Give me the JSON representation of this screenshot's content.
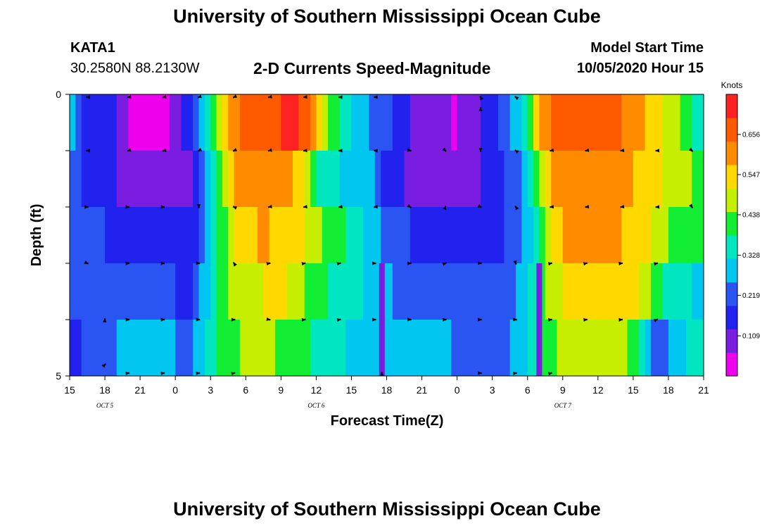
{
  "header": {
    "title": "University of Southern Mississippi Ocean Cube",
    "station": "KATA1",
    "coords": "30.2580N 88.2130W",
    "chart_title": "2-D Currents Speed-Magnitude",
    "model_label": "Model Start Time",
    "model_time": "10/05/2020 Hour 15"
  },
  "footer": {
    "title": "University of Southern Mississippi Ocean Cube"
  },
  "chart_data": {
    "type": "heatmap",
    "title": "2-D Currents Speed-Magnitude",
    "xlabel": "Forecast Time(Z)",
    "ylabel": "Depth (ft)",
    "x_ticks": [
      "15",
      "18",
      "21",
      "0",
      "3",
      "6",
      "9",
      "12",
      "15",
      "18",
      "21",
      "0",
      "3",
      "6",
      "9",
      "12",
      "15",
      "18",
      "21"
    ],
    "date_labels": [
      {
        "label": "OCT 5",
        "tick_index": 1
      },
      {
        "label": "OCT 6",
        "tick_index": 7
      },
      {
        "label": "OCT 7",
        "tick_index": 14
      }
    ],
    "y_ticks": [
      "0",
      "5"
    ],
    "ylim": [
      0,
      5
    ],
    "xlim_hours": [
      0,
      54
    ],
    "colorbar": {
      "unit": "Knots",
      "labels": [
        "0.656",
        "0.547",
        "0.438",
        "0.328",
        "0.219",
        "0.109"
      ],
      "values": [
        0.656,
        0.547,
        0.438,
        0.328,
        0.219,
        0.109
      ],
      "range": [
        0.0,
        0.765
      ],
      "colors": [
        "#ee00ee",
        "#7a1de0",
        "#2222ee",
        "#2b55f3",
        "#00c6f0",
        "#00e6c0",
        "#11ee33",
        "#c6ef00",
        "#ffd800",
        "#ff8c00",
        "#ff5a00",
        "#ff2222"
      ]
    },
    "depth_layers": 5,
    "speed_profiles": [
      {
        "layer": 1,
        "points": [
          [
            0,
            0.3
          ],
          [
            1,
            0.19
          ],
          [
            3,
            0.16
          ],
          [
            4,
            0.12
          ],
          [
            5,
            0.06
          ],
          [
            7,
            0.03
          ],
          [
            8,
            0.05
          ],
          [
            9,
            0.09
          ],
          [
            10,
            0.15
          ],
          [
            11,
            0.22
          ],
          [
            11.5,
            0.3
          ],
          [
            12.5,
            0.48
          ],
          [
            13.5,
            0.56
          ],
          [
            15,
            0.66
          ],
          [
            19.5,
            0.72
          ],
          [
            21,
            0.6
          ],
          [
            22,
            0.46
          ],
          [
            23,
            0.38
          ],
          [
            24,
            0.3
          ],
          [
            27,
            0.22
          ],
          [
            29,
            0.12
          ],
          [
            31,
            0.08
          ],
          [
            33,
            0.06
          ],
          [
            34,
            0.09
          ],
          [
            36,
            0.16
          ],
          [
            37,
            0.22
          ],
          [
            39,
            0.36
          ],
          [
            40,
            0.56
          ],
          [
            41,
            0.66
          ],
          [
            46,
            0.68
          ],
          [
            48,
            0.6
          ],
          [
            52,
            0.46
          ],
          [
            53,
            0.38
          ],
          [
            54,
            0.36
          ]
        ]
      },
      {
        "layer": 2,
        "points": [
          [
            0,
            0.26
          ],
          [
            1,
            0.19
          ],
          [
            3,
            0.16
          ],
          [
            5,
            0.1
          ],
          [
            8,
            0.09
          ],
          [
            10,
            0.09
          ],
          [
            11,
            0.16
          ],
          [
            12,
            0.32
          ],
          [
            13,
            0.48
          ],
          [
            14,
            0.58
          ],
          [
            18,
            0.62
          ],
          [
            20,
            0.5
          ],
          [
            21,
            0.38
          ],
          [
            23,
            0.32
          ],
          [
            26,
            0.26
          ],
          [
            27,
            0.16
          ],
          [
            29,
            0.11
          ],
          [
            33,
            0.09
          ],
          [
            35,
            0.12
          ],
          [
            37,
            0.18
          ],
          [
            39,
            0.28
          ],
          [
            40,
            0.44
          ],
          [
            41,
            0.58
          ],
          [
            44,
            0.62
          ],
          [
            48,
            0.58
          ],
          [
            50,
            0.52
          ],
          [
            52,
            0.48
          ],
          [
            54,
            0.42
          ]
        ]
      },
      {
        "layer": 3,
        "points": [
          [
            0,
            0.22
          ],
          [
            3,
            0.19
          ],
          [
            5,
            0.16
          ],
          [
            8,
            0.16
          ],
          [
            10,
            0.14
          ],
          [
            11,
            0.2
          ],
          [
            12,
            0.3
          ],
          [
            13,
            0.42
          ],
          [
            14,
            0.52
          ],
          [
            16,
            0.58
          ],
          [
            19,
            0.56
          ],
          [
            21,
            0.46
          ],
          [
            23,
            0.4
          ],
          [
            26,
            0.28
          ],
          [
            28,
            0.2
          ],
          [
            30,
            0.18
          ],
          [
            34,
            0.16
          ],
          [
            36,
            0.16
          ],
          [
            38,
            0.22
          ],
          [
            40,
            0.36
          ],
          [
            41,
            0.52
          ],
          [
            42,
            0.58
          ],
          [
            47,
            0.58
          ],
          [
            49,
            0.52
          ],
          [
            51,
            0.44
          ],
          [
            53,
            0.42
          ],
          [
            54,
            0.44
          ]
        ]
      },
      {
        "layer": 4,
        "points": [
          [
            0,
            0.21
          ],
          [
            3,
            0.2
          ],
          [
            6,
            0.21
          ],
          [
            9,
            0.19
          ],
          [
            10,
            0.16
          ],
          [
            11,
            0.24
          ],
          [
            12,
            0.34
          ],
          [
            13,
            0.42
          ],
          [
            15,
            0.5
          ],
          [
            18,
            0.52
          ],
          [
            20,
            0.46
          ],
          [
            21,
            0.4
          ],
          [
            23,
            0.36
          ],
          [
            26,
            0.3
          ],
          [
            28,
            0.24
          ],
          [
            30,
            0.21
          ],
          [
            33,
            0.2
          ],
          [
            35,
            0.2
          ],
          [
            38,
            0.24
          ],
          [
            40,
            0.38
          ],
          [
            41,
            0.48
          ],
          [
            43,
            0.54
          ],
          [
            48,
            0.54
          ],
          [
            49,
            0.48
          ],
          [
            50,
            0.4
          ],
          [
            52,
            0.34
          ],
          [
            54,
            0.3
          ]
        ]
      },
      {
        "layer": 5,
        "points": [
          [
            0,
            0.18
          ],
          [
            3,
            0.22
          ],
          [
            5,
            0.3
          ],
          [
            7,
            0.3
          ],
          [
            9,
            0.25
          ],
          [
            10,
            0.2
          ],
          [
            11,
            0.28
          ],
          [
            12,
            0.36
          ],
          [
            14,
            0.44
          ],
          [
            16,
            0.48
          ],
          [
            18,
            0.44
          ],
          [
            20,
            0.4
          ],
          [
            22,
            0.34
          ],
          [
            25,
            0.3
          ],
          [
            27,
            0.28
          ],
          [
            30,
            0.27
          ],
          [
            33,
            0.25
          ],
          [
            35,
            0.24
          ],
          [
            37,
            0.24
          ],
          [
            39,
            0.3
          ],
          [
            40,
            0.38
          ],
          [
            42,
            0.46
          ],
          [
            46,
            0.48
          ],
          [
            48,
            0.44
          ],
          [
            49,
            0.3
          ],
          [
            50,
            0.22
          ],
          [
            52,
            0.3
          ],
          [
            54,
            0.36
          ]
        ]
      }
    ],
    "dark_columns": [
      {
        "hours": 26.6,
        "layers": [
          4,
          5
        ],
        "speed": 0.08
      },
      {
        "hours": 40.0,
        "layers": [
          4,
          5
        ],
        "speed": 0.09
      }
    ],
    "vectors": [
      {
        "hours": 1.5,
        "depth": 0.05,
        "angle": 180,
        "len": 0.4
      },
      {
        "hours": 5,
        "depth": 0.05,
        "angle": 185,
        "len": 0.4
      },
      {
        "hours": 8,
        "depth": 0.05,
        "angle": 185,
        "len": 0.4
      },
      {
        "hours": 11,
        "depth": 0.05,
        "angle": 200,
        "len": 0.4
      },
      {
        "hours": 14,
        "depth": 0.05,
        "angle": 205,
        "len": 0.4
      },
      {
        "hours": 17,
        "depth": 0.05,
        "angle": 190,
        "len": 0.4
      },
      {
        "hours": 20,
        "depth": 0.05,
        "angle": 185,
        "len": 0.4
      },
      {
        "hours": 23,
        "depth": 0.05,
        "angle": 180,
        "len": 0.4
      },
      {
        "hours": 26,
        "depth": 0.05,
        "angle": 180,
        "len": 0.4
      },
      {
        "hours": 35,
        "depth": 0.05,
        "angle": 120,
        "len": 0.4
      },
      {
        "hours": 38,
        "depth": 0.05,
        "angle": 145,
        "len": 0.4
      },
      {
        "hours": 1.5,
        "depth": 1.0,
        "angle": 182,
        "len": 0.4
      },
      {
        "hours": 5,
        "depth": 1.0,
        "angle": 200,
        "len": 0.4
      },
      {
        "hours": 8,
        "depth": 1.0,
        "angle": 190,
        "len": 0.4
      },
      {
        "hours": 11,
        "depth": 1.0,
        "angle": 210,
        "len": 0.4
      },
      {
        "hours": 14,
        "depth": 1.0,
        "angle": 205,
        "len": 0.4
      },
      {
        "hours": 17,
        "depth": 1.0,
        "angle": 195,
        "len": 0.4
      },
      {
        "hours": 20,
        "depth": 1.0,
        "angle": 185,
        "len": 0.4
      },
      {
        "hours": 23,
        "depth": 1.0,
        "angle": 182,
        "len": 0.4
      },
      {
        "hours": 26,
        "depth": 1.0,
        "angle": 177,
        "len": 0.4
      },
      {
        "hours": 29,
        "depth": 1.0,
        "angle": 345,
        "len": 0.4
      },
      {
        "hours": 32,
        "depth": 1.0,
        "angle": 315,
        "len": 0.4
      },
      {
        "hours": 35,
        "depth": 1.0,
        "angle": 270,
        "len": 0.4
      },
      {
        "hours": 38,
        "depth": 1.0,
        "angle": 145,
        "len": 0.4
      },
      {
        "hours": 41,
        "depth": 1.0,
        "angle": 190,
        "len": 0.4
      },
      {
        "hours": 44,
        "depth": 1.0,
        "angle": 190,
        "len": 0.4
      },
      {
        "hours": 47,
        "depth": 1.0,
        "angle": 188,
        "len": 0.4
      },
      {
        "hours": 50,
        "depth": 1.0,
        "angle": 182,
        "len": 0.4
      },
      {
        "hours": 53,
        "depth": 1.0,
        "angle": 320,
        "len": 0.4
      },
      {
        "hours": 1.5,
        "depth": 2.0,
        "angle": 0,
        "len": 0.4
      },
      {
        "hours": 5,
        "depth": 2.0,
        "angle": 359,
        "len": 0.4
      },
      {
        "hours": 8,
        "depth": 2.0,
        "angle": 358,
        "len": 0.4
      },
      {
        "hours": 11,
        "depth": 2.0,
        "angle": 270,
        "len": 0.4
      },
      {
        "hours": 14,
        "depth": 2.0,
        "angle": 155,
        "len": 0.4
      },
      {
        "hours": 17,
        "depth": 2.0,
        "angle": 190,
        "len": 0.4
      },
      {
        "hours": 20,
        "depth": 2.0,
        "angle": 188,
        "len": 0.4
      },
      {
        "hours": 23,
        "depth": 2.0,
        "angle": 188,
        "len": 0.4
      },
      {
        "hours": 26,
        "depth": 2.0,
        "angle": 184,
        "len": 0.4
      },
      {
        "hours": 29,
        "depth": 2.0,
        "angle": 325,
        "len": 0.4
      },
      {
        "hours": 32,
        "depth": 2.0,
        "angle": 75,
        "len": 0.4
      },
      {
        "hours": 35,
        "depth": 2.0,
        "angle": 330,
        "len": 0.4
      },
      {
        "hours": 38,
        "depth": 2.0,
        "angle": 125,
        "len": 0.4
      },
      {
        "hours": 41,
        "depth": 2.0,
        "angle": 185,
        "len": 0.4
      },
      {
        "hours": 44,
        "depth": 2.0,
        "angle": 188,
        "len": 0.4
      },
      {
        "hours": 47,
        "depth": 2.0,
        "angle": 188,
        "len": 0.4
      },
      {
        "hours": 50,
        "depth": 2.0,
        "angle": 182,
        "len": 0.4
      },
      {
        "hours": 53,
        "depth": 2.0,
        "angle": 305,
        "len": 0.4
      },
      {
        "hours": 1.5,
        "depth": 3.0,
        "angle": 335,
        "len": 0.4
      },
      {
        "hours": 5,
        "depth": 3.0,
        "angle": 2,
        "len": 0.4
      },
      {
        "hours": 8,
        "depth": 3.0,
        "angle": 0,
        "len": 0.4
      },
      {
        "hours": 11,
        "depth": 3.0,
        "angle": 355,
        "len": 0.4
      },
      {
        "hours": 14,
        "depth": 3.0,
        "angle": 125,
        "len": 0.4
      },
      {
        "hours": 17,
        "depth": 3.0,
        "angle": 12,
        "len": 0.4
      },
      {
        "hours": 20,
        "depth": 3.0,
        "angle": 10,
        "len": 0.4
      },
      {
        "hours": 23,
        "depth": 3.0,
        "angle": 10,
        "len": 0.4
      },
      {
        "hours": 26,
        "depth": 3.0,
        "angle": 0,
        "len": 0.4
      },
      {
        "hours": 29,
        "depth": 3.0,
        "angle": 1,
        "len": 0.4
      },
      {
        "hours": 32,
        "depth": 3.0,
        "angle": 20,
        "len": 0.4
      },
      {
        "hours": 35,
        "depth": 3.0,
        "angle": 355,
        "len": 0.4
      },
      {
        "hours": 38,
        "depth": 3.0,
        "angle": 290,
        "len": 0.4
      },
      {
        "hours": 41,
        "depth": 3.0,
        "angle": 10,
        "len": 0.4
      },
      {
        "hours": 44,
        "depth": 3.0,
        "angle": 10,
        "len": 0.4
      },
      {
        "hours": 47,
        "depth": 3.0,
        "angle": 8,
        "len": 0.4
      },
      {
        "hours": 50,
        "depth": 3.0,
        "angle": 15,
        "len": 0.4
      },
      {
        "hours": 3,
        "depth": 4.0,
        "angle": 85,
        "len": 0.4
      },
      {
        "hours": 5,
        "depth": 4.0,
        "angle": 2,
        "len": 0.4
      },
      {
        "hours": 8,
        "depth": 4.0,
        "angle": 2,
        "len": 0.4
      },
      {
        "hours": 11,
        "depth": 4.0,
        "angle": 0,
        "len": 0.4
      },
      {
        "hours": 14,
        "depth": 4.0,
        "angle": 0,
        "len": 0.4
      },
      {
        "hours": 17,
        "depth": 4.0,
        "angle": 350,
        "len": 0.4
      },
      {
        "hours": 20,
        "depth": 4.0,
        "angle": 5,
        "len": 0.4
      },
      {
        "hours": 23,
        "depth": 4.0,
        "angle": 8,
        "len": 0.4
      },
      {
        "hours": 26,
        "depth": 4.0,
        "angle": 0,
        "len": 0.4
      },
      {
        "hours": 29,
        "depth": 4.0,
        "angle": 358,
        "len": 0.4
      },
      {
        "hours": 32,
        "depth": 4.0,
        "angle": 3,
        "len": 0.4
      },
      {
        "hours": 35,
        "depth": 4.0,
        "angle": 0,
        "len": 0.4
      },
      {
        "hours": 38,
        "depth": 4.0,
        "angle": 357,
        "len": 0.4
      },
      {
        "hours": 41,
        "depth": 4.0,
        "angle": 5,
        "len": 0.4
      },
      {
        "hours": 44,
        "depth": 4.0,
        "angle": 5,
        "len": 0.4
      },
      {
        "hours": 47,
        "depth": 4.0,
        "angle": 5,
        "len": 0.4
      },
      {
        "hours": 50,
        "depth": 4.0,
        "angle": 25,
        "len": 0.4
      },
      {
        "hours": 3,
        "depth": 4.8,
        "angle": 45,
        "len": 0.4
      },
      {
        "hours": 5,
        "depth": 4.95,
        "angle": 5,
        "len": 0.4
      },
      {
        "hours": 8,
        "depth": 4.95,
        "angle": 5,
        "len": 0.4
      },
      {
        "hours": 11,
        "depth": 4.95,
        "angle": 5,
        "len": 0.4
      },
      {
        "hours": 14,
        "depth": 4.95,
        "angle": 12,
        "len": 0.4
      },
      {
        "hours": 26.6,
        "depth": 4.95,
        "angle": 90,
        "len": 0.4
      },
      {
        "hours": 35,
        "depth": 4.95,
        "angle": 0,
        "len": 0.4
      },
      {
        "hours": 38,
        "depth": 4.95,
        "angle": 8,
        "len": 0.4
      },
      {
        "hours": 41,
        "depth": 4.95,
        "angle": 15,
        "len": 0.4
      },
      {
        "hours": 35,
        "depth": 0.25,
        "angle": 90,
        "len": 0.4
      }
    ]
  }
}
